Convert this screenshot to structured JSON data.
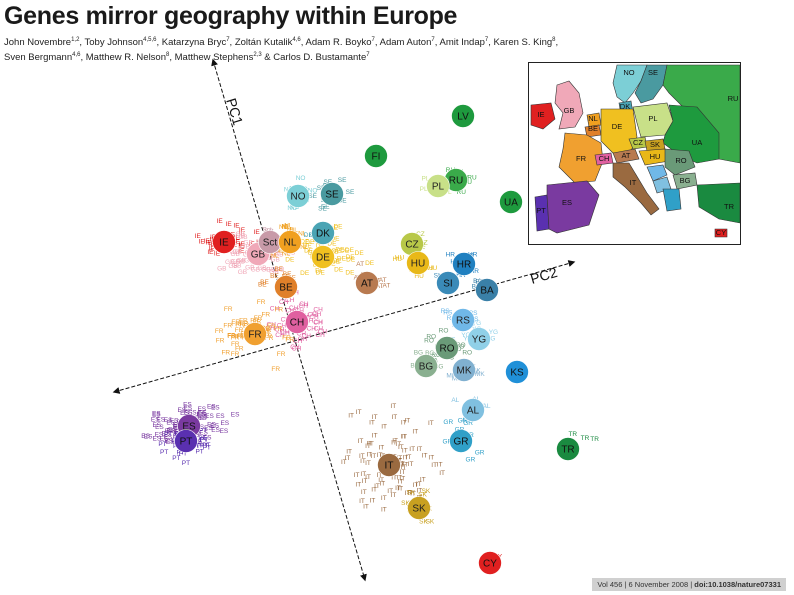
{
  "header": {
    "title": "Genes mirror geography within Europe",
    "authors": [
      {
        "name": "John Novembre",
        "aff": "1,2"
      },
      {
        "name": "Toby Johnson",
        "aff": "4,5,6"
      },
      {
        "name": "Katarzyna Bryc",
        "aff": "7"
      },
      {
        "name": "Zoltán Kutalik",
        "aff": "4,6"
      },
      {
        "name": "Adam R. Boyko",
        "aff": "7"
      },
      {
        "name": "Adam Auton",
        "aff": "7"
      },
      {
        "name": "Amit Indap",
        "aff": "7"
      },
      {
        "name": "Karen S. King",
        "aff": "8"
      },
      {
        "name": "Sven Bergmann",
        "aff": "4,6"
      },
      {
        "name": "Matthew R. Nelson",
        "aff": "8"
      },
      {
        "name": "Matthew Stephens",
        "aff": "2,3"
      },
      {
        "name": "Carlos D. Bustamante",
        "aff": "7"
      }
    ]
  },
  "axes": {
    "pc1": "PC1",
    "pc2": "PC2"
  },
  "populations": [
    {
      "code": "IE",
      "color": "#e02020"
    },
    {
      "code": "GB",
      "color": "#f0a8b8"
    },
    {
      "code": "Sct",
      "color": "#c89aa8"
    },
    {
      "code": "NL",
      "color": "#f0a020"
    },
    {
      "code": "NO",
      "color": "#7ccfd6"
    },
    {
      "code": "SE",
      "color": "#4a9aa0"
    },
    {
      "code": "FI",
      "color": "#1e9a3e"
    },
    {
      "code": "LV",
      "color": "#1e9a3e"
    },
    {
      "code": "RU",
      "color": "#3aaa4a"
    },
    {
      "code": "PL",
      "color": "#c8e088"
    },
    {
      "code": "UA",
      "color": "#1e9a3e"
    },
    {
      "code": "DK",
      "color": "#4aa4b4"
    },
    {
      "code": "DE",
      "color": "#f0c020"
    },
    {
      "code": "CZ",
      "color": "#b8c848"
    },
    {
      "code": "HU",
      "color": "#e8b818"
    },
    {
      "code": "HR",
      "color": "#2080c0"
    },
    {
      "code": "SI",
      "color": "#3a8ab8"
    },
    {
      "code": "BA",
      "color": "#3a80a8"
    },
    {
      "code": "AT",
      "color": "#b87a50"
    },
    {
      "code": "BE",
      "color": "#e0802a"
    },
    {
      "code": "CH",
      "color": "#e060a0"
    },
    {
      "code": "FR",
      "color": "#f0a030"
    },
    {
      "code": "RS",
      "color": "#70b8e8"
    },
    {
      "code": "YG",
      "color": "#90d0e8"
    },
    {
      "code": "RO",
      "color": "#6a9a78"
    },
    {
      "code": "BG",
      "color": "#8ab090"
    },
    {
      "code": "MK",
      "color": "#80b0d0"
    },
    {
      "code": "KS",
      "color": "#2090d8"
    },
    {
      "code": "AL",
      "color": "#80c0e0"
    },
    {
      "code": "GR",
      "color": "#30a0c8"
    },
    {
      "code": "TR",
      "color": "#1a8a40"
    },
    {
      "code": "IT",
      "color": "#9a6a40"
    },
    {
      "code": "SK",
      "color": "#c8a020"
    },
    {
      "code": "CY",
      "color": "#e02020"
    },
    {
      "code": "ES",
      "color": "#7a3aa0"
    },
    {
      "code": "PT",
      "color": "#5a30b0"
    }
  ],
  "inset_map": {
    "labels": [
      "NO",
      "SE",
      "RU",
      "DK",
      "IE",
      "GB",
      "NL",
      "BE",
      "DE",
      "PL",
      "UA",
      "FR",
      "CH",
      "AT",
      "CZ",
      "SK",
      "HU",
      "RO",
      "BG",
      "IT",
      "PT",
      "ES",
      "TR",
      "CY"
    ]
  },
  "citation": {
    "volume": "Vol 456",
    "date": "6 November 2008",
    "doi": "doi:10.1038/nature07331"
  }
}
